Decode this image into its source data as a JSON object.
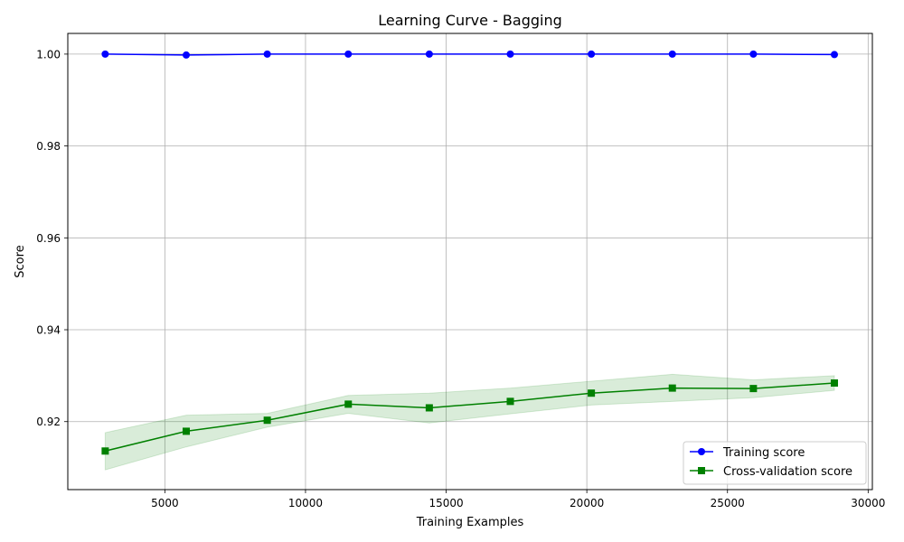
{
  "chart_data": {
    "type": "line",
    "title": "Learning Curve - Bagging",
    "xlabel": "Training Examples",
    "ylabel": "Score",
    "xlim": [
      1550,
      30150
    ],
    "ylim": [
      0.9052,
      1.0045
    ],
    "xticks": [
      5000,
      10000,
      15000,
      20000,
      25000,
      30000
    ],
    "xtick_labels": [
      "5000",
      "10000",
      "15000",
      "20000",
      "25000",
      "30000"
    ],
    "yticks": [
      0.92,
      0.94,
      0.96,
      0.98,
      1.0
    ],
    "ytick_labels": [
      "0.92",
      "0.94",
      "0.96",
      "0.98",
      "1.00"
    ],
    "grid": true,
    "legend_position": "lower-right",
    "x": [
      2880,
      5760,
      8640,
      11520,
      14400,
      17280,
      20160,
      23040,
      25920,
      28800
    ],
    "series": [
      {
        "name": "Training score",
        "color": "#0000ff",
        "marker": "circle",
        "values": [
          1.0,
          0.9998,
          1.0,
          1.0,
          1.0,
          1.0,
          1.0,
          1.0,
          1.0,
          0.9999
        ],
        "band_lower": [
          1.0,
          0.9997,
          1.0,
          1.0,
          1.0,
          1.0,
          1.0,
          1.0,
          1.0,
          0.9999
        ],
        "band_upper": [
          1.0,
          0.9999,
          1.0,
          1.0,
          1.0,
          1.0,
          1.0,
          1.0,
          1.0,
          1.0
        ]
      },
      {
        "name": "Cross-validation score",
        "color": "#008000",
        "marker": "square",
        "band_color": "#008000",
        "band_opacity": 0.15,
        "values": [
          0.9136,
          0.9179,
          0.9203,
          0.9238,
          0.923,
          0.9244,
          0.9262,
          0.9273,
          0.9272,
          0.9284
        ],
        "band_lower": [
          0.9095,
          0.9145,
          0.9188,
          0.9218,
          0.9197,
          0.9217,
          0.9236,
          0.9244,
          0.9252,
          0.9268
        ],
        "band_upper": [
          0.9176,
          0.9214,
          0.9218,
          0.9257,
          0.9262,
          0.9273,
          0.9288,
          0.9303,
          0.9291,
          0.93
        ]
      }
    ]
  }
}
